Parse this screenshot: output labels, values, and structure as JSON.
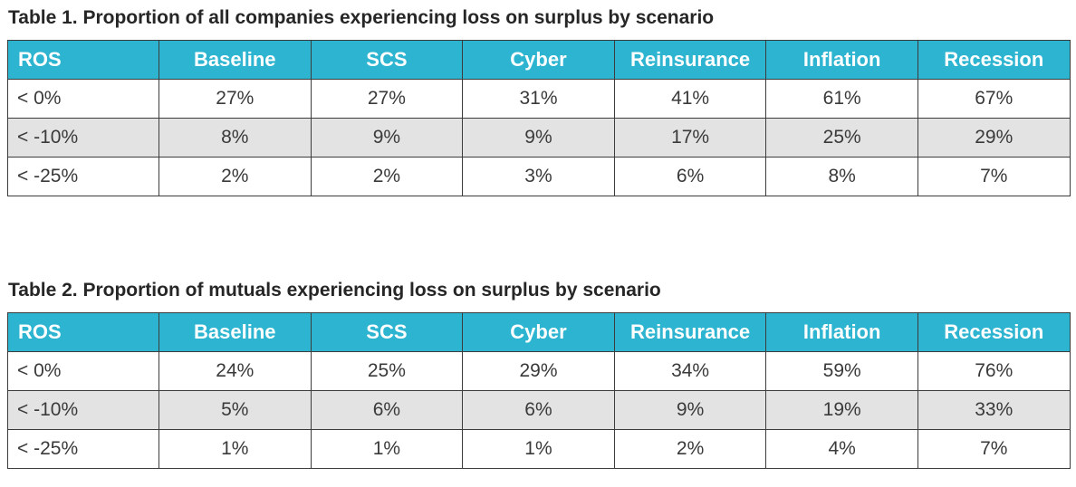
{
  "tables": [
    {
      "title": "Table 1. Proportion of all companies experiencing loss on surplus by scenario",
      "headers": [
        "ROS",
        "Baseline",
        "SCS",
        "Cyber",
        "Reinsurance",
        "Inflation",
        "Recession"
      ],
      "rows": [
        [
          "< 0%",
          "27%",
          "27%",
          "31%",
          "41%",
          "61%",
          "67%"
        ],
        [
          "< -10%",
          "8%",
          "9%",
          "9%",
          "17%",
          "25%",
          "29%"
        ],
        [
          "< -25%",
          "2%",
          "2%",
          "3%",
          "6%",
          "8%",
          "7%"
        ]
      ]
    },
    {
      "title": "Table 2. Proportion of mutuals experiencing loss on surplus by scenario",
      "headers": [
        "ROS",
        "Baseline",
        "SCS",
        "Cyber",
        "Reinsurance",
        "Inflation",
        "Recession"
      ],
      "rows": [
        [
          "< 0%",
          "24%",
          "25%",
          "29%",
          "34%",
          "59%",
          "76%"
        ],
        [
          "< -10%",
          "5%",
          "6%",
          "6%",
          "9%",
          "19%",
          "33%"
        ],
        [
          "< -25%",
          "1%",
          "1%",
          "1%",
          "2%",
          "4%",
          "7%"
        ]
      ]
    }
  ],
  "colors": {
    "header_background": "#2db4d0",
    "header_text": "#ffffff",
    "shaded_row": "#e3e3e3",
    "border": "#3c3c3c"
  }
}
